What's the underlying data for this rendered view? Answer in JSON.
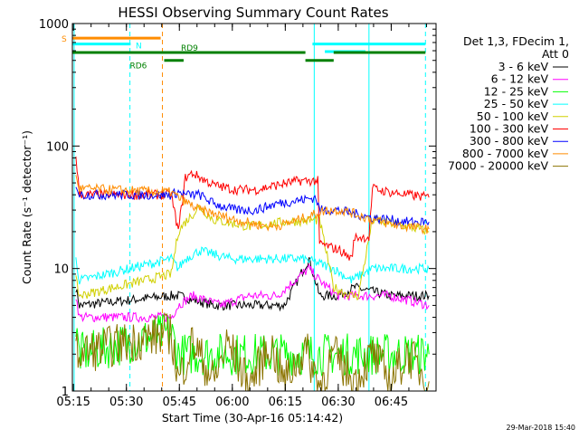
{
  "chart_data": {
    "type": "line",
    "title": "HESSI Observing Summary Count Rates",
    "xlabel": "Start Time (30-Apr-16 05:14:42)",
    "ylabel": "Count Rate (s⁻¹ detector⁻¹)",
    "yscale": "log",
    "ylim": [
      1,
      1000
    ],
    "xlim_minutes": [
      0,
      103
    ],
    "x_tick_labels": [
      "05:15",
      "05:30",
      "05:45",
      "06:00",
      "06:15",
      "06:30",
      "06:45"
    ],
    "x_tick_minutes": [
      0.3,
      15.3,
      30.3,
      45.3,
      60.3,
      75.3,
      90.3
    ],
    "y_tick_labels": [
      "1",
      "10",
      "100",
      "1000"
    ],
    "y_tick_values": [
      1,
      10,
      100,
      1000
    ],
    "legend_header": [
      "Det 1,3, FDecim 1,",
      "Att 0"
    ],
    "timestamp": "29-Mar-2018 15:40",
    "series": [
      {
        "name": "3 - 6 keV",
        "color": "#000000",
        "values": [
          [
            1,
            7
          ],
          [
            2,
            5
          ],
          [
            28,
            6
          ],
          [
            30,
            6
          ],
          [
            40,
            5
          ],
          [
            60,
            5
          ],
          [
            67,
            12
          ],
          [
            70,
            6
          ],
          [
            75,
            6
          ],
          [
            80,
            7
          ],
          [
            90,
            6
          ],
          [
            101,
            6
          ]
        ]
      },
      {
        "name": "6 - 12 keV",
        "color": "#ff00ff",
        "values": [
          [
            1,
            6
          ],
          [
            2,
            4
          ],
          [
            28,
            4
          ],
          [
            30,
            5
          ],
          [
            34,
            6
          ],
          [
            42,
            5
          ],
          [
            50,
            6
          ],
          [
            58,
            6
          ],
          [
            63,
            8
          ],
          [
            67,
            10
          ],
          [
            70,
            8
          ],
          [
            75,
            6
          ],
          [
            82,
            6
          ],
          [
            90,
            6
          ],
          [
            101,
            5
          ]
        ]
      },
      {
        "name": "12 - 25 keV",
        "color": "#00ff00",
        "values": [
          [
            1,
            3
          ],
          [
            2,
            2
          ],
          [
            28,
            3
          ],
          [
            30,
            2
          ],
          [
            40,
            2
          ],
          [
            50,
            2
          ],
          [
            60,
            2
          ],
          [
            70,
            2
          ],
          [
            80,
            2
          ],
          [
            90,
            2
          ],
          [
            101,
            2
          ]
        ]
      },
      {
        "name": "25 - 50 keV",
        "color": "#00ffff",
        "values": [
          [
            1,
            12
          ],
          [
            2,
            8
          ],
          [
            28,
            12
          ],
          [
            30,
            10
          ],
          [
            32,
            12
          ],
          [
            36,
            14
          ],
          [
            45,
            12
          ],
          [
            55,
            12
          ],
          [
            65,
            12
          ],
          [
            70,
            11
          ],
          [
            74,
            10
          ],
          [
            79,
            8
          ],
          [
            85,
            10
          ],
          [
            95,
            10
          ],
          [
            101,
            10
          ]
        ]
      },
      {
        "name": "50 - 100 keV",
        "color": "#d0d000",
        "values": [
          [
            1,
            8
          ],
          [
            2,
            6
          ],
          [
            28,
            9
          ],
          [
            30,
            20
          ],
          [
            32,
            24
          ],
          [
            36,
            32
          ],
          [
            40,
            25
          ],
          [
            50,
            22
          ],
          [
            60,
            24
          ],
          [
            70,
            25
          ],
          [
            74,
            7
          ],
          [
            79,
            6
          ],
          [
            81,
            6
          ],
          [
            85,
            25
          ],
          [
            95,
            22
          ],
          [
            101,
            20
          ]
        ]
      },
      {
        "name": "100 - 300 keV",
        "color": "#ff0000",
        "values": [
          [
            1,
            85
          ],
          [
            2,
            40
          ],
          [
            28,
            40
          ],
          [
            30,
            20
          ],
          [
            32,
            55
          ],
          [
            34,
            60
          ],
          [
            40,
            48
          ],
          [
            46,
            44
          ],
          [
            52,
            44
          ],
          [
            58,
            48
          ],
          [
            64,
            52
          ],
          [
            68,
            52
          ],
          [
            69.5,
            52
          ],
          [
            70,
            16
          ],
          [
            76,
            14
          ],
          [
            79,
            12
          ],
          [
            80,
            18
          ],
          [
            84,
            18
          ],
          [
            85,
            45
          ],
          [
            90,
            42
          ],
          [
            95,
            40
          ],
          [
            101,
            38
          ]
        ]
      },
      {
        "name": "300 - 800 keV",
        "color": "#0000ff",
        "values": [
          [
            1,
            50
          ],
          [
            2,
            40
          ],
          [
            28,
            40
          ],
          [
            30,
            42
          ],
          [
            32,
            40
          ],
          [
            36,
            40
          ],
          [
            40,
            34
          ],
          [
            46,
            30
          ],
          [
            52,
            30
          ],
          [
            58,
            34
          ],
          [
            64,
            36
          ],
          [
            69,
            38
          ],
          [
            70,
            30
          ],
          [
            75,
            30
          ],
          [
            80,
            28
          ],
          [
            85,
            26
          ],
          [
            90,
            25
          ],
          [
            95,
            24
          ],
          [
            101,
            24
          ]
        ]
      },
      {
        "name": "800 - 7000 keV",
        "color": "#ff8c00",
        "values": [
          [
            1,
            55
          ],
          [
            2,
            45
          ],
          [
            28,
            42
          ],
          [
            30,
            38
          ],
          [
            32,
            35
          ],
          [
            36,
            30
          ],
          [
            40,
            28
          ],
          [
            46,
            25
          ],
          [
            52,
            23
          ],
          [
            56,
            22
          ],
          [
            60,
            23
          ],
          [
            64,
            25
          ],
          [
            69,
            28
          ],
          [
            72,
            30
          ],
          [
            76,
            30
          ],
          [
            80,
            28
          ],
          [
            85,
            25
          ],
          [
            90,
            23
          ],
          [
            95,
            22
          ],
          [
            101,
            21
          ]
        ]
      },
      {
        "name": "7000 - 20000 keV",
        "color": "#8b7300",
        "values": [
          [
            1,
            2
          ],
          [
            28,
            3
          ],
          [
            30,
            1.2
          ],
          [
            34,
            2.5
          ],
          [
            36,
            2
          ],
          [
            40,
            1.2
          ],
          [
            44,
            2.5
          ],
          [
            50,
            1.1
          ],
          [
            56,
            2.4
          ],
          [
            60,
            1.2
          ],
          [
            66,
            2.2
          ],
          [
            70,
            1.1
          ],
          [
            74,
            2
          ],
          [
            80,
            1.2
          ],
          [
            85,
            2
          ],
          [
            90,
            1.2
          ],
          [
            95,
            2
          ],
          [
            101,
            1.2
          ]
        ]
      }
    ],
    "flags": [
      {
        "label": "S",
        "color": "#ff8c00",
        "x_start": 0,
        "x_end": 25,
        "level": 760
      },
      {
        "label": "N",
        "color": "#00ffff",
        "x_start": 0,
        "x_end": 16.5,
        "level": 680
      },
      {
        "label": "N",
        "color": "#00ffff",
        "x_start": 71.5,
        "x_end": 83,
        "level": 590
      },
      {
        "label": "N",
        "color": "#00ffff",
        "x_start": 68,
        "x_end": 100,
        "level": 680
      },
      {
        "label": "RD9",
        "color": "#008000",
        "x_start": 0,
        "x_end": 66,
        "level": 580
      },
      {
        "label": "RD9",
        "color": "#008000",
        "x_start": 66,
        "x_end": 74,
        "level": 500
      },
      {
        "label": "RD9",
        "color": "#008000",
        "x_start": 74,
        "x_end": 84,
        "level": 580
      },
      {
        "label": "RD9",
        "color": "#008000",
        "x_start": 84,
        "x_end": 100,
        "level": 580
      },
      {
        "label": "RD6",
        "color": "#008000",
        "x_start": 26,
        "x_end": 31.5,
        "level": 500
      }
    ],
    "vlines": [
      {
        "x": 0.5,
        "color": "#00ffff",
        "dash": false
      },
      {
        "x": 16.3,
        "color": "#00ffff",
        "dash": true
      },
      {
        "x": 25.5,
        "color": "#ff8c00",
        "dash": true
      },
      {
        "x": 68.5,
        "color": "#00ffff",
        "dash": false
      },
      {
        "x": 84,
        "color": "#00ffff",
        "dash": false
      },
      {
        "x": 100,
        "color": "#00ffff",
        "dash": true
      }
    ]
  }
}
